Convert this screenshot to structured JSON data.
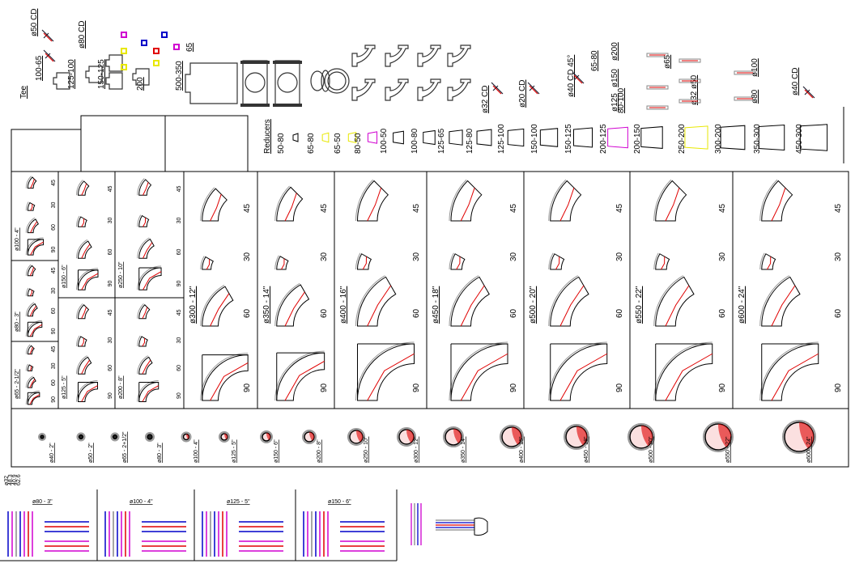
{
  "top_labels": [
    "ø50 CD",
    "Tee",
    "100-65",
    "125-100",
    "ø80 CD",
    "150-125",
    "200",
    "500-350",
    "65",
    "ø32 CD",
    "ø20 CD",
    "ø40 CD 45°",
    "65-80",
    "80-100",
    "ø200",
    "ø150",
    "ø125",
    "ø65",
    "ø32 ø50",
    "ø100",
    "ø80",
    "ø40 CD"
  ],
  "reducers": {
    "title": "Reducers",
    "items": [
      "50-80",
      "65-80",
      "65-50",
      "80-50",
      "100-50",
      "100-80",
      "125-65",
      "125-80",
      "125-100",
      "150-100",
      "150-125",
      "200-125",
      "200-150",
      "250-200",
      "300-200",
      "350-300",
      "450-300"
    ]
  },
  "small_elbows": [
    {
      "label": "ø100 - 4\"",
      "angles": [
        "45",
        "30",
        "60",
        "90"
      ]
    },
    {
      "label": "ø80 - 3\"",
      "angles": [
        "45",
        "30",
        "60",
        "90"
      ]
    },
    {
      "label": "ø65 - 2-1/2\"",
      "angles": [
        "45",
        "30",
        "60",
        "90"
      ]
    },
    {
      "label": "ø150 - 6\"",
      "angles": [
        "45",
        "30",
        "60",
        "90"
      ]
    },
    {
      "label": "ø125 - 5\"",
      "angles": [
        "45",
        "30",
        "60",
        "90"
      ]
    },
    {
      "label": "ø250 - 10\"",
      "angles": [
        "45",
        "30",
        "60",
        "90"
      ]
    },
    {
      "label": "ø200 - 8\"",
      "angles": [
        "45",
        "30",
        "60",
        "90"
      ]
    }
  ],
  "large_elbows": [
    {
      "label": "ø300 - 12\"",
      "angles": [
        "45",
        "30",
        "60",
        "90"
      ]
    },
    {
      "label": "ø350 - 14\"",
      "angles": [
        "45",
        "30",
        "60",
        "90"
      ]
    },
    {
      "label": "ø400 - 16\"",
      "angles": [
        "45",
        "30",
        "60",
        "90"
      ]
    },
    {
      "label": "ø450 - 18\"",
      "angles": [
        "45",
        "30",
        "60",
        "90"
      ]
    },
    {
      "label": "ø500 - 20\"",
      "angles": [
        "45",
        "30",
        "60",
        "90"
      ]
    },
    {
      "label": "ø550 - 22\"",
      "angles": [
        "45",
        "30",
        "60",
        "90"
      ]
    },
    {
      "label": "ø600 - 24\"",
      "angles": [
        "45",
        "30",
        "60",
        "90"
      ]
    }
  ],
  "sections": [
    "ø40 - 2\"",
    "ø50 - 2\"",
    "ø65 - 2+1/2\"",
    "ø80 - 3\"",
    "ø100 - 4\"",
    "ø125 - 5\"",
    "ø150 - 6\"",
    "ø200 - 8\"",
    "ø250 - 10\"",
    "ø300 - 12\"",
    "ø350 - 14\"",
    "ø400 - 16\"",
    "ø450 - 18\"",
    "ø500 - 20\"",
    "ø550 - 22\"",
    "ø600 - 24\""
  ],
  "dims": [
    "ø32",
    "48.3",
    "40.9",
    "62.6"
  ],
  "pipe_panels": [
    "ø80 - 3\"",
    "ø100 - 4\"",
    "ø125 - 5\"",
    "ø150 - 6\""
  ],
  "colors": {
    "red": "#e00000",
    "blue": "#0000c8",
    "magenta": "#d000d0",
    "yellow": "#e8e800",
    "grey": "#808080"
  }
}
